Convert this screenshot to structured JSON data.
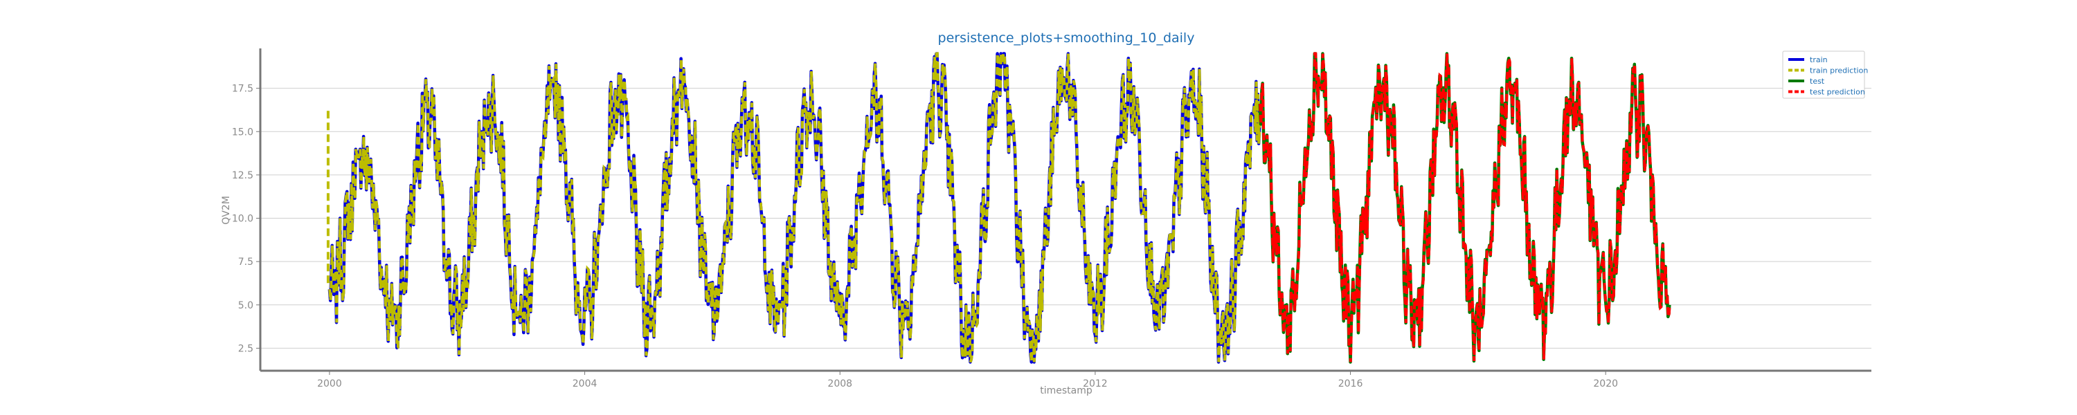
{
  "chart_data": {
    "type": "line",
    "title": "persistence_plots+smoothing_10_daily",
    "xlabel": "timestamp",
    "ylabel": "QV2M",
    "xlim": [
      "1998-12-01",
      "2024-03-01"
    ],
    "ylim": [
      1.2,
      19.8
    ],
    "x_ticks": [
      "2000",
      "2004",
      "2008",
      "2012",
      "2016",
      "2020"
    ],
    "y_ticks": [
      "2.5",
      "5.0",
      "7.5",
      "10.0",
      "12.5",
      "15.0",
      "17.5"
    ],
    "grid": "horizontal",
    "legend_position": "top-right",
    "series": [
      {
        "name": "train",
        "color": "#0000dd",
        "x_range": [
          "2000-01-01",
          "2014-08-01"
        ],
        "dates": [
          "2000-01-01",
          "2000-07-15",
          "2001-01-01",
          "2001-07-15",
          "2002-01-01",
          "2002-07-15",
          "2003-01-01",
          "2003-07-15",
          "2004-01-01",
          "2004-07-15",
          "2005-01-01",
          "2005-07-15",
          "2006-01-01",
          "2006-07-15",
          "2007-01-01",
          "2007-07-15",
          "2008-01-01",
          "2008-07-15",
          "2009-01-01",
          "2009-07-15",
          "2010-01-01",
          "2010-07-15",
          "2011-01-01",
          "2011-07-15",
          "2012-01-01",
          "2012-07-15",
          "2013-01-01",
          "2013-07-15",
          "2014-01-01",
          "2014-08-01"
        ],
        "values": [
          5.5,
          13.5,
          4.2,
          16.0,
          4.5,
          16.5,
          4.4,
          17.2,
          4.3,
          16.8,
          4.5,
          18.0,
          4.6,
          16.5,
          4.3,
          16.8,
          4.5,
          16.5,
          4.5,
          17.8,
          3.0,
          18.5,
          3.2,
          18.2,
          4.5,
          17.2,
          4.8,
          17.0,
          3.5,
          16.5
        ]
      },
      {
        "name": "train prediction",
        "color": "#bcbc00"
      },
      {
        "name": "test",
        "color": "#007a00",
        "x_range": [
          "2014-08-01",
          "2020-12-31"
        ],
        "dates": [
          "2014-08-01",
          "2015-01-01",
          "2015-07-01",
          "2016-01-01",
          "2016-07-01",
          "2017-01-01",
          "2017-07-01",
          "2018-01-01",
          "2018-07-01",
          "2019-01-01",
          "2019-07-01",
          "2020-01-01",
          "2020-07-01",
          "2020-12-31"
        ],
        "values": [
          16.5,
          4.0,
          18.5,
          4.5,
          17.5,
          4.5,
          17.5,
          3.5,
          17.5,
          4.5,
          17.0,
          5.5,
          16.5,
          5.0
        ]
      },
      {
        "name": "test prediction",
        "color": "#ff0000"
      }
    ]
  }
}
